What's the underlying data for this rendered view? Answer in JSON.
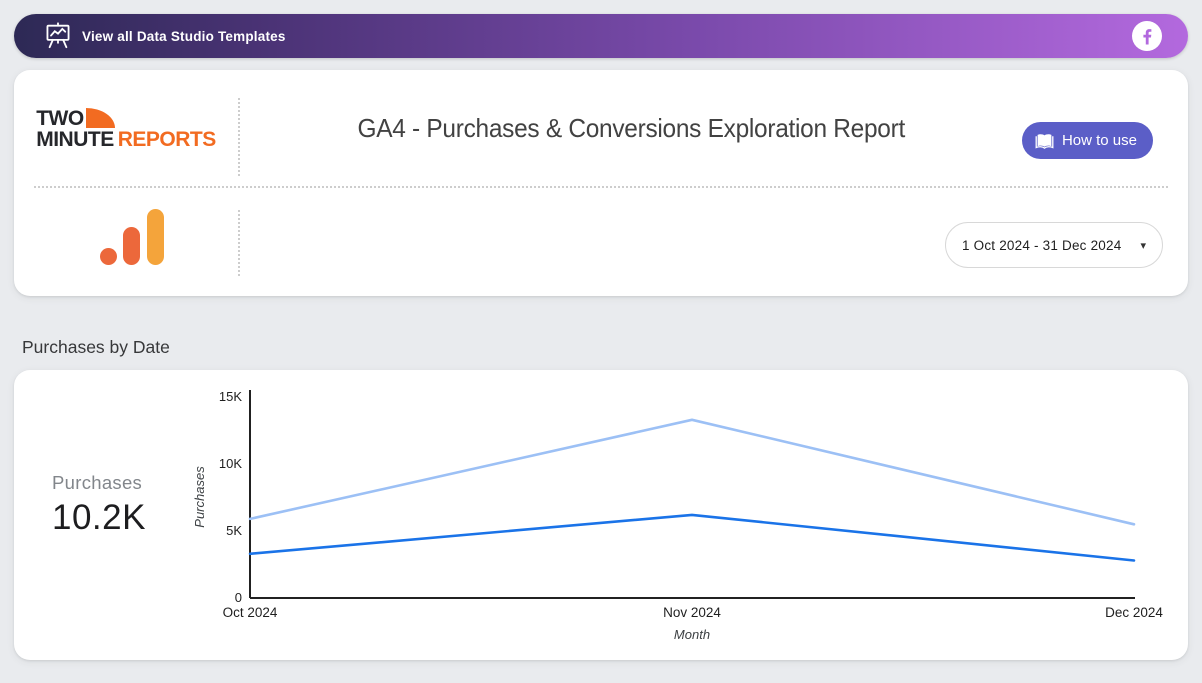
{
  "banner": {
    "label": "View all Data Studio Templates",
    "icon": "presentation-chart-icon",
    "social": "facebook",
    "gradient_left": "#2d2955",
    "gradient_right": "#b369de"
  },
  "header": {
    "logo": {
      "word1": "TWO",
      "word2": "MINUTE",
      "word3": "REPORTS",
      "accent_color": "#F26B21"
    },
    "title": "GA4 - Purchases & Conversions Exploration Report",
    "how_to_use": {
      "label": "How to use",
      "color": "#5B5EC7"
    },
    "date_range": {
      "value": "1 Oct 2024 - 31 Dec 2024"
    },
    "ga_logo_colors": {
      "bar_tall": "#F4A43B",
      "bar_mid": "#EC683B",
      "dot": "#EC683B"
    }
  },
  "section": {
    "title": "Purchases by Date"
  },
  "scorecard": {
    "label": "Purchases",
    "value": "10.2K"
  },
  "chart_data": {
    "type": "line",
    "x": [
      "Oct 2024",
      "Nov 2024",
      "Dec 2024"
    ],
    "series": [
      {
        "name": "series-1-light",
        "color": "#9cc0f5",
        "values": [
          5900,
          13300,
          5500
        ]
      },
      {
        "name": "series-2-dark",
        "color": "#1a73e8",
        "values": [
          3300,
          6200,
          2800
        ]
      }
    ],
    "title": "Purchases by Date",
    "xlabel": "Month",
    "ylabel": "Purchases",
    "ylim": [
      0,
      15000
    ],
    "yticks": [
      "0",
      "5K",
      "10K",
      "15K"
    ],
    "grid": false,
    "legend": "none"
  }
}
